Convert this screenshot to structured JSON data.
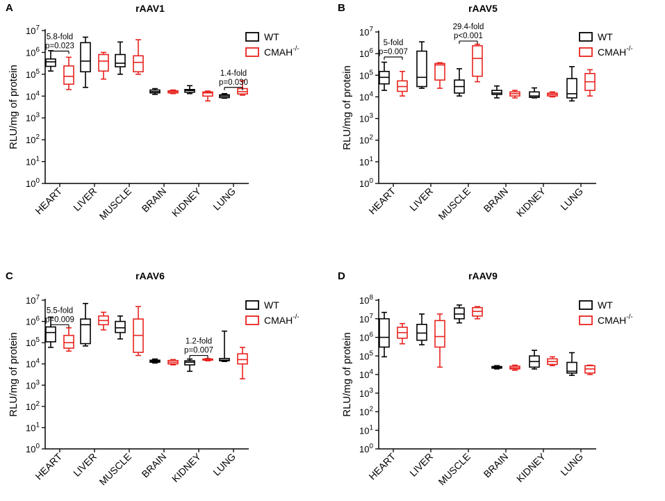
{
  "chart_data": [
    {
      "panel": "A",
      "type": "box",
      "title": "rAAV1",
      "ylabel": "RLU/mg of protein",
      "yscale": "log",
      "ylim_exp": [
        0,
        7
      ],
      "categories": [
        "HEART",
        "LIVER",
        "MUSCLE",
        "BRAIN",
        "KIDNEY",
        "LUNG"
      ],
      "legend_position": "top-right",
      "series": [
        {
          "name": "WT",
          "color": "#000000",
          "boxes": [
            {
              "min": 140000,
              "q1": 230000,
              "median": 370000,
              "q3": 500000,
              "max": 1200000
            },
            {
              "min": 25000,
              "q1": 130000,
              "median": 400000,
              "q3": 2800000,
              "max": 5000000
            },
            {
              "min": 100000,
              "q1": 220000,
              "median": 320000,
              "q3": 800000,
              "max": 3000000
            },
            {
              "min": 12000,
              "q1": 14000,
              "median": 16000,
              "q3": 19000,
              "max": 22000
            },
            {
              "min": 13000,
              "q1": 15000,
              "median": 18000,
              "q3": 20000,
              "max": 30000
            },
            {
              "min": 8000,
              "q1": 8500,
              "median": 10000,
              "q3": 11500,
              "max": 13000
            }
          ]
        },
        {
          "name": "CMAH",
          "color": "#e8231f",
          "boxes": [
            {
              "min": 20000,
              "q1": 35000,
              "median": 80000,
              "q3": 240000,
              "max": 600000
            },
            {
              "min": 60000,
              "q1": 140000,
              "median": 400000,
              "q3": 800000,
              "max": 1000000
            },
            {
              "min": 100000,
              "q1": 130000,
              "median": 350000,
              "q3": 700000,
              "max": 3800000
            },
            {
              "min": 13000,
              "q1": 14000,
              "median": 16000,
              "q3": 17500,
              "max": 19000
            },
            {
              "min": 6000,
              "q1": 10000,
              "median": 14000,
              "q3": 15500,
              "max": 17000
            },
            {
              "min": 11000,
              "q1": 12500,
              "median": 16000,
              "q3": 22000,
              "max": 50000
            }
          ]
        }
      ],
      "annotations": [
        {
          "category": "HEART",
          "text": [
            "5.8-fold",
            "p=0.023"
          ],
          "bracket_at": 1150000
        },
        {
          "category": "LUNG",
          "text": [
            "1.4-fold",
            "p=0.030"
          ],
          "bracket_at": 25000
        }
      ]
    },
    {
      "panel": "B",
      "type": "box",
      "title": "rAAV5",
      "ylabel": "RLU/mg of protein",
      "yscale": "log",
      "ylim_exp": [
        0,
        7
      ],
      "categories": [
        "HEART",
        "LIVER",
        "MUSCLE",
        "BRAIN",
        "KIDNEY",
        "LUNG"
      ],
      "legend_position": "top-right",
      "series": [
        {
          "name": "WT",
          "color": "#000000",
          "boxes": [
            {
              "min": 20000,
              "q1": 40000,
              "median": 80000,
              "q3": 150000,
              "max": 400000
            },
            {
              "min": 25000,
              "q1": 30000,
              "median": 80000,
              "q3": 1300000,
              "max": 3500000
            },
            {
              "min": 11000,
              "q1": 15000,
              "median": 30000,
              "q3": 60000,
              "max": 200000
            },
            {
              "min": 9000,
              "q1": 13000,
              "median": 15000,
              "q3": 20000,
              "max": 32000
            },
            {
              "min": 9000,
              "q1": 9500,
              "median": 11000,
              "q3": 17000,
              "max": 26000
            },
            {
              "min": 6500,
              "q1": 9000,
              "median": 14000,
              "q3": 70000,
              "max": 250000
            }
          ]
        },
        {
          "name": "CMAH",
          "color": "#e8231f",
          "boxes": [
            {
              "min": 11000,
              "q1": 18000,
              "median": 30000,
              "q3": 55000,
              "max": 150000
            },
            {
              "min": 25000,
              "q1": 60000,
              "median": 300000,
              "q3": 350000,
              "max": 380000
            },
            {
              "min": 50000,
              "q1": 90000,
              "median": 600000,
              "q3": 2300000,
              "max": 2700000
            },
            {
              "min": 9000,
              "q1": 11000,
              "median": 14000,
              "q3": 17000,
              "max": 20000
            },
            {
              "min": 10000,
              "q1": 11000,
              "median": 13000,
              "q3": 15000,
              "max": 17000
            },
            {
              "min": 11000,
              "q1": 20000,
              "median": 50000,
              "q3": 120000,
              "max": 180000
            }
          ]
        }
      ],
      "annotations": [
        {
          "category": "HEART",
          "text": [
            "5-fold",
            "p=0.007"
          ],
          "bracket_at": 700000
        },
        {
          "category": "MUSCLE",
          "text": [
            "29.4-fold",
            "p<0.001"
          ],
          "bracket_at": 3800000
        }
      ]
    },
    {
      "panel": "C",
      "type": "box",
      "title": "rAAV6",
      "ylabel": "RLU/mg of protein",
      "yscale": "log",
      "ylim_exp": [
        0,
        7
      ],
      "categories": [
        "HEART",
        "LIVER",
        "MUSCLE",
        "BRAIN",
        "KIDNEY",
        "LUNG"
      ],
      "legend_position": "top-right",
      "series": [
        {
          "name": "WT",
          "color": "#000000",
          "boxes": [
            {
              "min": 60000,
              "q1": 110000,
              "median": 300000,
              "q3": 550000,
              "max": 1600000
            },
            {
              "min": 70000,
              "q1": 90000,
              "median": 700000,
              "q3": 1300000,
              "max": 7000000
            },
            {
              "min": 150000,
              "q1": 300000,
              "median": 500000,
              "q3": 1000000,
              "max": 1800000
            },
            {
              "min": 11000,
              "q1": 12000,
              "median": 13500,
              "q3": 15000,
              "max": 17000
            },
            {
              "min": 4500,
              "q1": 9000,
              "median": 12000,
              "q3": 14000,
              "max": 17000
            },
            {
              "min": 13000,
              "q1": 14000,
              "median": 15000,
              "q3": 18000,
              "max": 350000
            }
          ]
        },
        {
          "name": "CMAH",
          "color": "#e8231f",
          "boxes": [
            {
              "min": 40000,
              "q1": 55000,
              "median": 100000,
              "q3": 220000,
              "max": 500000
            },
            {
              "min": 400000,
              "q1": 700000,
              "median": 1100000,
              "q3": 1800000,
              "max": 2700000
            },
            {
              "min": 25000,
              "q1": 35000,
              "median": 220000,
              "q3": 1300000,
              "max": 5000000
            },
            {
              "min": 9000,
              "q1": 10000,
              "median": 12000,
              "q3": 14500,
              "max": 16000
            },
            {
              "min": 14000,
              "q1": 15000,
              "median": 16000,
              "q3": 17000,
              "max": 18000
            },
            {
              "min": 2000,
              "q1": 10000,
              "median": 16000,
              "q3": 30000,
              "max": 60000
            }
          ]
        }
      ],
      "annotations": [
        {
          "category": "HEART",
          "text": [
            "5.5-fold",
            "p=0.009"
          ],
          "bracket_at": 700000
        },
        {
          "category": "KIDNEY",
          "text": [
            "1.2-fold",
            "p=0.007"
          ],
          "bracket_at": 25000
        }
      ]
    },
    {
      "panel": "D",
      "type": "box",
      "title": "rAAV9",
      "ylabel": "RLU/mg of protein",
      "yscale": "log",
      "ylim_exp": [
        0,
        8
      ],
      "categories": [
        "HEART",
        "LIVER",
        "MUSCLE",
        "BRAIN",
        "KIDNEY",
        "LUNG"
      ],
      "legend_position": "top-right",
      "series": [
        {
          "name": "WT",
          "color": "#000000",
          "boxes": [
            {
              "min": 90000,
              "q1": 300000,
              "median": 1000000,
              "q3": 10000000,
              "max": 22000000
            },
            {
              "min": 400000,
              "q1": 700000,
              "median": 1700000,
              "q3": 5000000,
              "max": 18000000
            },
            {
              "min": 6000000,
              "q1": 10000000,
              "median": 18000000,
              "q3": 38000000,
              "max": 55000000
            },
            {
              "min": 20000,
              "q1": 22000,
              "median": 25000,
              "q3": 27000,
              "max": 30000
            },
            {
              "min": 20000,
              "q1": 25000,
              "median": 50000,
              "q3": 100000,
              "max": 200000
            },
            {
              "min": 9000,
              "q1": 12000,
              "median": 15000,
              "q3": 45000,
              "max": 150000
            }
          ]
        },
        {
          "name": "CMAH",
          "color": "#e8231f",
          "boxes": [
            {
              "min": 450000,
              "q1": 900000,
              "median": 1800000,
              "q3": 3500000,
              "max": 5500000
            },
            {
              "min": 25000,
              "q1": 300000,
              "median": 1100000,
              "q3": 8000000,
              "max": 18000000
            },
            {
              "min": 10000000,
              "q1": 14000000,
              "median": 25000000,
              "q3": 40000000,
              "max": 45000000
            },
            {
              "min": 17000,
              "q1": 20000,
              "median": 23000,
              "q3": 28000,
              "max": 32000
            },
            {
              "min": 30000,
              "q1": 35000,
              "median": 50000,
              "q3": 70000,
              "max": 90000
            },
            {
              "min": 10000,
              "q1": 12000,
              "median": 20000,
              "q3": 30000,
              "max": 32000
            }
          ]
        }
      ],
      "annotations": []
    }
  ],
  "legend": {
    "wt": "WT",
    "cmah": "CMAH",
    "cmah_sup": "-/-"
  },
  "colors": {
    "wt": "#000000",
    "cmah": "#e8231f",
    "axis": "#000000"
  }
}
